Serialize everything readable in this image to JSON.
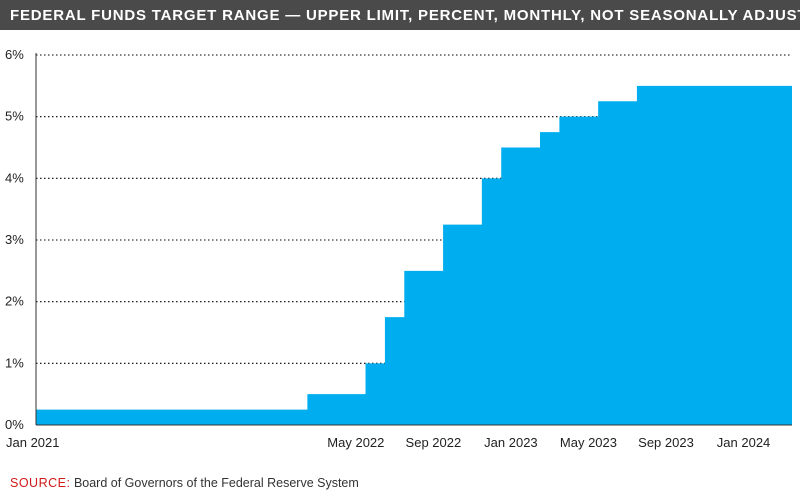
{
  "header": {
    "title": "FEDERAL FUNDS TARGET RANGE — UPPER LIMIT, PERCENT, MONTHLY, NOT SEASONALLY ADJUSTED"
  },
  "footer": {
    "source_label": "SOURCE:",
    "source_text": "Board of Governors of the Federal Reserve System"
  },
  "colors": {
    "title_bar": "#4a4a4a",
    "area_fill": "#00aeef",
    "source_label": "#d11a1a",
    "grid": "#000000"
  },
  "chart_data": {
    "type": "area",
    "title": "FEDERAL FUNDS TARGET RANGE — UPPER LIMIT, PERCENT, MONTHLY, NOT SEASONALLY ADJUSTED",
    "step": true,
    "xlabel": "",
    "ylabel": "",
    "ylim": [
      0,
      6
    ],
    "y_ticks": [
      0,
      1,
      2,
      3,
      4,
      5,
      6
    ],
    "y_tick_labels": [
      "0%",
      "1%",
      "2%",
      "3%",
      "4%",
      "5%",
      "6%"
    ],
    "grid": "horizontal dotted",
    "legend": "none",
    "x_tick_labels": [
      "Jan 2021",
      "May 2022",
      "Sep 2022",
      "Jan 2023",
      "May 2023",
      "Sep 2023",
      "Jan 2024"
    ],
    "x_tick_index": [
      0,
      16,
      20,
      24,
      28,
      32,
      36
    ],
    "x": [
      "Jan 2021",
      "Feb 2021",
      "Mar 2021",
      "Apr 2021",
      "May 2021",
      "Jun 2021",
      "Jul 2021",
      "Aug 2021",
      "Sep 2021",
      "Oct 2021",
      "Nov 2021",
      "Dec 2021",
      "Jan 2022",
      "Feb 2022",
      "Mar 2022",
      "Apr 2022",
      "May 2022",
      "Jun 2022",
      "Jul 2022",
      "Aug 2022",
      "Sep 2022",
      "Oct 2022",
      "Nov 2022",
      "Dec 2022",
      "Jan 2023",
      "Feb 2023",
      "Mar 2023",
      "Apr 2023",
      "May 2023",
      "Jun 2023",
      "Jul 2023",
      "Aug 2023",
      "Sep 2023",
      "Oct 2023",
      "Nov 2023",
      "Dec 2023",
      "Jan 2024",
      "Feb 2024",
      "Mar 2024"
    ],
    "series": [
      {
        "values": [
          0.25,
          0.25,
          0.25,
          0.25,
          0.25,
          0.25,
          0.25,
          0.25,
          0.25,
          0.25,
          0.25,
          0.25,
          0.25,
          0.25,
          0.5,
          0.5,
          0.5,
          1.0,
          1.75,
          2.5,
          2.5,
          3.25,
          3.25,
          4.0,
          4.5,
          4.5,
          4.75,
          5.0,
          5.0,
          5.25,
          5.25,
          5.5,
          5.5,
          5.5,
          5.5,
          5.5,
          5.5,
          5.5,
          5.5
        ]
      }
    ]
  }
}
